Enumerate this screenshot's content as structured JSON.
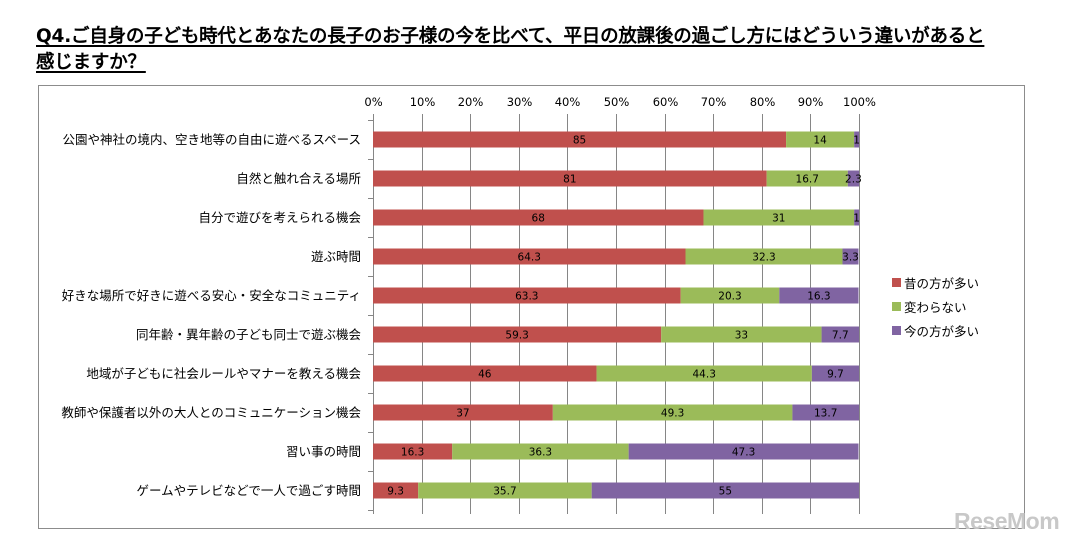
{
  "title": "Q4.ご自身の子ども時代とあなたの長子のお子様の今を比べて、平日の放課後の過ごし方にはどういう違いがあると感じますか？",
  "title_lines": [
    "Q4.ご自身の子ども時代とあなたの長子のお子様の今を比べて、平日の放課後の過ごし方にはどういう違いがあると",
    "感じますか？"
  ],
  "watermark": "ReseMom",
  "colors": {
    "past_more": "#C0504D",
    "same": "#9BBB59",
    "now_more": "#8064A2",
    "grid": "#868686"
  },
  "chart_data": {
    "type": "bar",
    "orientation": "horizontal",
    "stacked": "percent",
    "title": "Q4.ご自身の子ども時代とあなたの長子のお子様の今を比べて、平日の放課後の過ごし方にはどういう違いがあると感じますか？",
    "xlabel": "",
    "ylabel": "",
    "xlim": [
      0,
      100
    ],
    "x_ticks": [
      "0%",
      "10%",
      "20%",
      "30%",
      "40%",
      "50%",
      "60%",
      "70%",
      "80%",
      "90%",
      "100%"
    ],
    "grid": true,
    "legend_position": "right",
    "categories": [
      "公園や神社の境内、空き地等の自由に遊べるスペース",
      "自然と触れ合える場所",
      "自分で遊びを考えられる機会",
      "遊ぶ時間",
      "好きな場所で好きに遊べる安心・安全なコミュニティ",
      "同年齢・異年齢の子ども同士で遊ぶ機会",
      "地域が子どもに社会ルールやマナーを教える機会",
      "教師や保護者以外の大人とのコミュニケーション機会",
      "習い事の時間",
      "ゲームやテレビなどで一人で過ごす時間"
    ],
    "series": [
      {
        "name": "昔の方が多い",
        "color": "#C0504D",
        "values": [
          85,
          81,
          68,
          64.3,
          63.3,
          59.3,
          46,
          37,
          16.3,
          9.3
        ]
      },
      {
        "name": "変わらない",
        "color": "#9BBB59",
        "values": [
          14,
          16.7,
          31,
          32.3,
          20.3,
          33,
          44.3,
          49.3,
          36.3,
          35.7
        ]
      },
      {
        "name": "今の方が多い",
        "color": "#8064A2",
        "values": [
          1,
          2.3,
          1,
          3.3,
          16.3,
          7.7,
          9.7,
          13.7,
          47.3,
          55
        ]
      }
    ],
    "data_labels": [
      [
        "85",
        "14",
        "1"
      ],
      [
        "81",
        "16.7",
        "2.3"
      ],
      [
        "68",
        "31",
        "1"
      ],
      [
        "64.3",
        "32.3",
        "3.3"
      ],
      [
        "63.3",
        "20.3",
        "16.3"
      ],
      [
        "59.3",
        "33",
        "7.7"
      ],
      [
        "46",
        "44.3",
        "9.7"
      ],
      [
        "37",
        "49.3",
        "13.7"
      ],
      [
        "16.3",
        "36.3",
        "47.3"
      ],
      [
        "9.3",
        "35.7",
        "55"
      ]
    ]
  }
}
